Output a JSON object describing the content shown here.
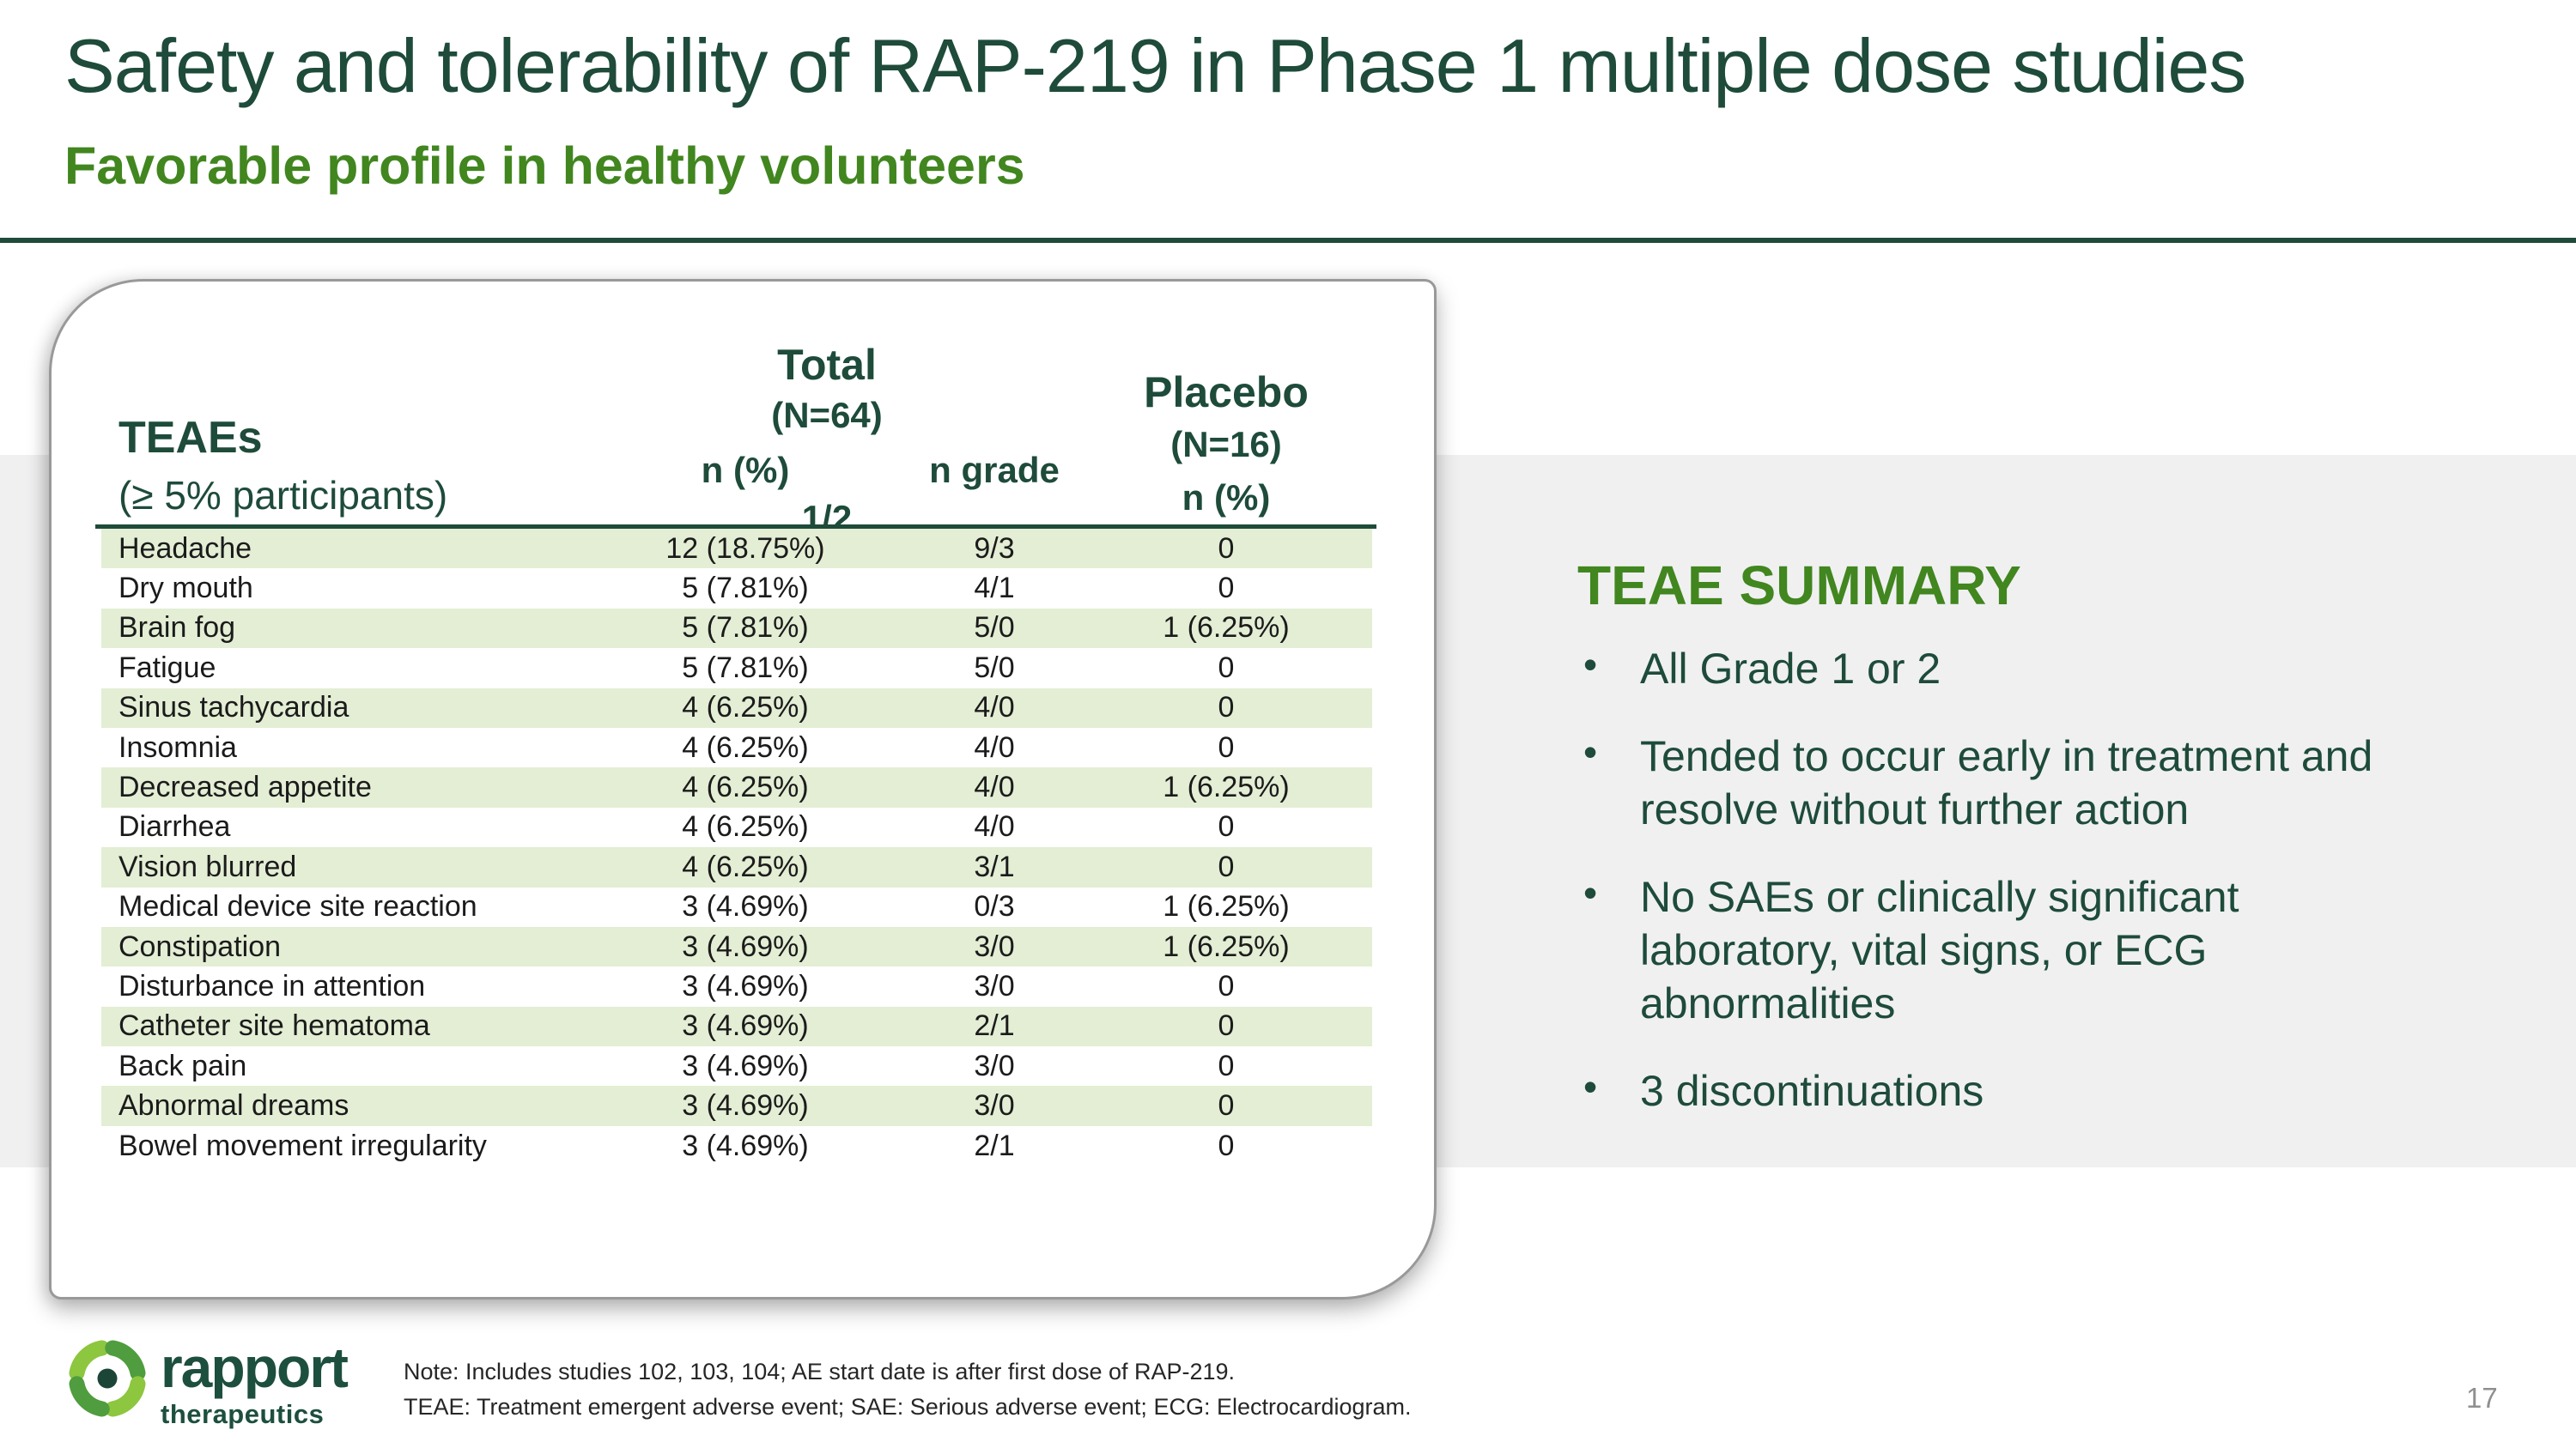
{
  "slide": {
    "title": "Safety and tolerability of RAP-219 in Phase 1 multiple dose studies",
    "subtitle": "Favorable profile in healthy volunteers",
    "page_number": "17"
  },
  "colors": {
    "dark_green": "#1e4b3a",
    "accent_green": "#41861f",
    "row_stripe_green": "#e3eed4",
    "band_gray": "#f0f0f1",
    "logo_light_green": "#8dc63f",
    "logo_medium_green": "#4f9d3e"
  },
  "table": {
    "header": {
      "row_label_title": "TEAEs",
      "row_label_subtitle": "(≥ 5% participants)",
      "total_group_title": "Total",
      "total_group_n": "(N=64)",
      "col_n_pct": "n (%)",
      "col_n_grade": "n grade",
      "grade_fraction": "1/2",
      "placebo_title": "Placebo",
      "placebo_n": "(N=16)",
      "placebo_col_n_pct": "n (%)"
    },
    "rows": [
      {
        "teae": "Headache",
        "total_n_pct": "12 (18.75%)",
        "n_grade": "9/3",
        "placebo_n_pct": "0"
      },
      {
        "teae": "Dry mouth",
        "total_n_pct": "5 (7.81%)",
        "n_grade": "4/1",
        "placebo_n_pct": "0"
      },
      {
        "teae": "Brain fog",
        "total_n_pct": "5 (7.81%)",
        "n_grade": "5/0",
        "placebo_n_pct": "1 (6.25%)"
      },
      {
        "teae": "Fatigue",
        "total_n_pct": "5 (7.81%)",
        "n_grade": "5/0",
        "placebo_n_pct": "0"
      },
      {
        "teae": "Sinus tachycardia",
        "total_n_pct": "4 (6.25%)",
        "n_grade": "4/0",
        "placebo_n_pct": "0"
      },
      {
        "teae": "Insomnia",
        "total_n_pct": "4 (6.25%)",
        "n_grade": "4/0",
        "placebo_n_pct": "0"
      },
      {
        "teae": "Decreased appetite",
        "total_n_pct": "4 (6.25%)",
        "n_grade": "4/0",
        "placebo_n_pct": "1 (6.25%)"
      },
      {
        "teae": "Diarrhea",
        "total_n_pct": "4 (6.25%)",
        "n_grade": "4/0",
        "placebo_n_pct": "0"
      },
      {
        "teae": "Vision blurred",
        "total_n_pct": "4 (6.25%)",
        "n_grade": "3/1",
        "placebo_n_pct": "0"
      },
      {
        "teae": "Medical device site reaction",
        "total_n_pct": "3 (4.69%)",
        "n_grade": "0/3",
        "placebo_n_pct": "1 (6.25%)"
      },
      {
        "teae": "Constipation",
        "total_n_pct": "3 (4.69%)",
        "n_grade": "3/0",
        "placebo_n_pct": "1 (6.25%)"
      },
      {
        "teae": "Disturbance in attention",
        "total_n_pct": "3 (4.69%)",
        "n_grade": "3/0",
        "placebo_n_pct": "0"
      },
      {
        "teae": "Catheter site hematoma",
        "total_n_pct": "3 (4.69%)",
        "n_grade": "2/1",
        "placebo_n_pct": "0"
      },
      {
        "teae": "Back pain",
        "total_n_pct": "3 (4.69%)",
        "n_grade": "3/0",
        "placebo_n_pct": "0"
      },
      {
        "teae": "Abnormal dreams",
        "total_n_pct": "3 (4.69%)",
        "n_grade": "3/0",
        "placebo_n_pct": "0"
      },
      {
        "teae": "Bowel movement irregularity",
        "total_n_pct": "3 (4.69%)",
        "n_grade": "2/1",
        "placebo_n_pct": "0"
      }
    ]
  },
  "summary": {
    "heading": "TEAE SUMMARY",
    "bullets": [
      "All Grade 1 or 2",
      "Tended to occur early in treatment and\nresolve without further action",
      "No SAEs or clinically significant\nlaboratory, vital signs, or ECG\nabnormalities",
      "3 discontinuations"
    ]
  },
  "footer": {
    "logo_word": "rapport",
    "logo_sub": "therapeutics",
    "note_line1": "Note: Includes studies 102, 103, 104; AE start date is after first dose of RAP-219.",
    "note_line2": "TEAE: Treatment emergent adverse event; SAE: Serious adverse event; ECG: Electrocardiogram."
  }
}
